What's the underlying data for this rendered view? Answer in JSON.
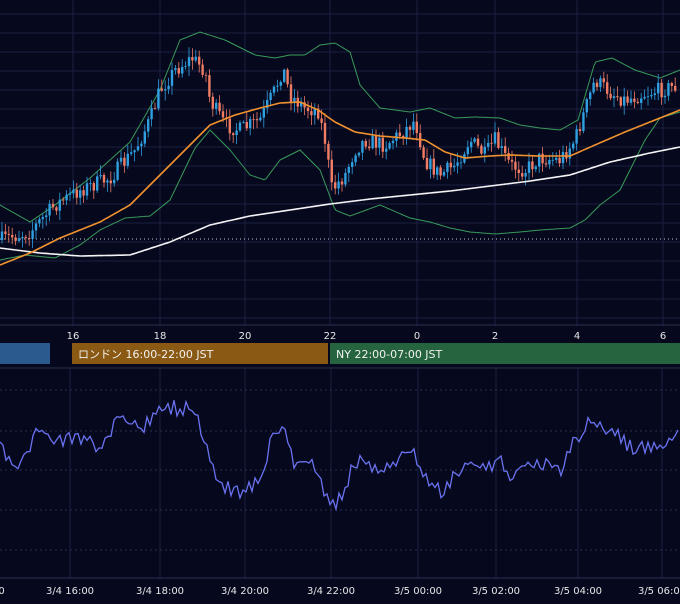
{
  "theme": {
    "background": "#06091e",
    "grid": "#1b2040",
    "up_candle": "#2f9fe0",
    "down_candle": "#f07c64",
    "bollinger": "#3a9a5a",
    "ma_short": "#f0922e",
    "ma_long": "#f4f4f4",
    "oscillator": "#6a72f0",
    "axis_text": "#e6e6e6"
  },
  "sessions": [
    {
      "label": "",
      "color": "#2a5a8e"
    },
    {
      "label": "ロンドン 16:00-22:00 JST",
      "color": "#8a5a14"
    },
    {
      "label": "NY 22:00-07:00 JST",
      "color": "#25643e"
    }
  ],
  "chart_data": [
    {
      "type": "candlestick",
      "title": "",
      "x_tick_labels": [
        "16",
        "18",
        "20",
        "22",
        "0",
        "2",
        "4",
        "6"
      ],
      "overlays": [
        "bollinger-bands",
        "moving-average-short",
        "moving-average-long"
      ],
      "grid": true,
      "reference_line": "dotted horizontal line"
    },
    {
      "type": "line",
      "title": "",
      "series": [
        {
          "name": "",
          "color": "#6a72f0"
        }
      ],
      "x_tick_labels": [
        "3/4 16:00",
        "3/4 18:00",
        "3/4 20:00",
        "3/4 22:00",
        "3/5 00:00",
        "3/5 02:00",
        "3/5 04:00",
        "3/5 06:00"
      ],
      "grid": true
    }
  ]
}
